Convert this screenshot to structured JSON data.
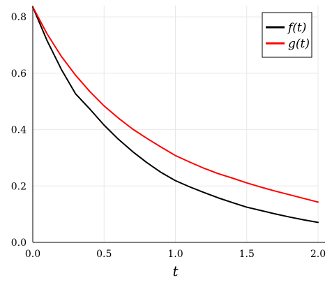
{
  "chart_data": {
    "type": "line",
    "title": "",
    "xlabel": "t",
    "ylabel": "",
    "xlim": [
      0,
      2.0
    ],
    "ylim": [
      0,
      0.84
    ],
    "xticks": [
      "0.0",
      "0.5",
      "1.0",
      "1.5",
      "2.0"
    ],
    "xtick_values": [
      0,
      0.5,
      1.0,
      1.5,
      2.0
    ],
    "yticks": [
      "0.0",
      "0.2",
      "0.4",
      "0.6",
      "0.8"
    ],
    "ytick_values": [
      0,
      0.2,
      0.4,
      0.6,
      0.8
    ],
    "grid": true,
    "legend_position": "top-right",
    "x": [
      0.0,
      0.1,
      0.2,
      0.3,
      0.4,
      0.5,
      0.6,
      0.7,
      0.8,
      0.9,
      1.0,
      1.1,
      1.2,
      1.3,
      1.4,
      1.5,
      1.6,
      1.7,
      1.8,
      1.9,
      2.0
    ],
    "series": [
      {
        "name": "f(t)",
        "color": "#000000",
        "values": [
          0.835,
          0.716,
          0.614,
          0.527,
          0.473,
          0.416,
          0.366,
          0.322,
          0.283,
          0.248,
          0.219,
          0.197,
          0.177,
          0.158,
          0.141,
          0.125,
          0.113,
          0.101,
          0.09,
          0.08,
          0.071
        ]
      },
      {
        "name": "g(t)",
        "color": "#ff0000",
        "values": [
          0.835,
          0.74,
          0.66,
          0.593,
          0.535,
          0.484,
          0.441,
          0.402,
          0.369,
          0.338,
          0.308,
          0.285,
          0.263,
          0.244,
          0.228,
          0.211,
          0.196,
          0.182,
          0.169,
          0.156,
          0.143
        ]
      }
    ]
  }
}
